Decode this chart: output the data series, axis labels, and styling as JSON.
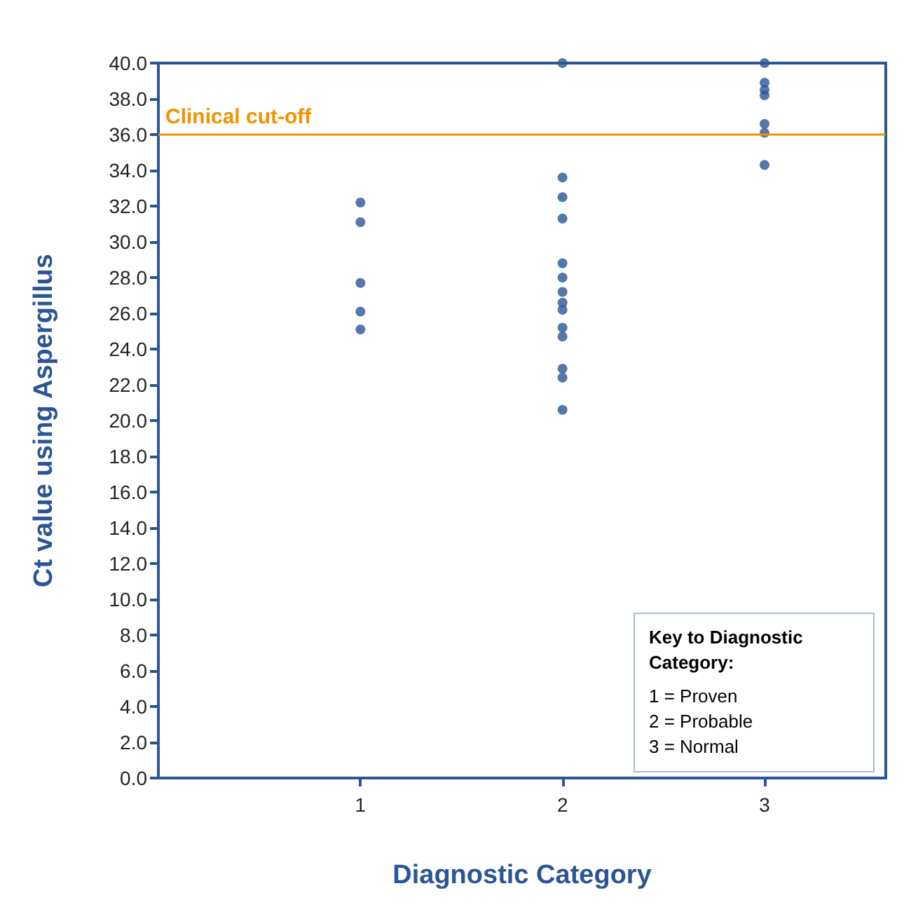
{
  "chart_data": {
    "type": "scatter",
    "xlabel": "Diagnostic Category",
    "ylabel": "Ct value using Aspergillus",
    "series": [
      {
        "color": "#2b5597",
        "x": [
          1,
          1,
          1,
          1,
          1
        ],
        "values": [
          32.2,
          31.1,
          27.7,
          26.1,
          25.1
        ]
      },
      {
        "color": "#2b5597",
        "x": [
          2,
          2,
          2,
          2,
          2,
          2,
          2,
          2,
          2,
          2,
          2,
          2,
          2,
          2
        ],
        "values": [
          40,
          33.6,
          32.5,
          31.3,
          28.8,
          28.0,
          27.2,
          26.6,
          26.2,
          25.2,
          24.7,
          22.9,
          22.4,
          20.6
        ]
      },
      {
        "color": "#2b5597",
        "x": [
          3,
          3,
          3,
          3,
          3,
          3,
          3
        ],
        "values": [
          40,
          38.9,
          38.5,
          38.2,
          36.6,
          36.1,
          34.3
        ]
      }
    ],
    "xlim": [
      0,
      3.6
    ],
    "xticks": [
      1,
      2,
      3
    ],
    "ylim": [
      0,
      40
    ],
    "yticks": [
      {
        "value": 0,
        "label": "0.0"
      },
      {
        "value": 2,
        "label": "2.0"
      },
      {
        "value": 4,
        "label": "4.0"
      },
      {
        "value": 6,
        "label": "6.0"
      },
      {
        "value": 8,
        "label": "8.0"
      },
      {
        "value": 10,
        "label": "10.0"
      },
      {
        "value": 12,
        "label": "12.0"
      },
      {
        "value": 14,
        "label": "14.0"
      },
      {
        "value": 16,
        "label": "16.0"
      },
      {
        "value": 18,
        "label": "18.0"
      },
      {
        "value": 20,
        "label": "20.0"
      },
      {
        "value": 22,
        "label": "22.0"
      },
      {
        "value": 24,
        "label": "24.0"
      },
      {
        "value": 26,
        "label": "26.0"
      },
      {
        "value": 28,
        "label": "28.0"
      },
      {
        "value": 30,
        "label": "30.0"
      },
      {
        "value": 32,
        "label": "32.0"
      },
      {
        "value": 34,
        "label": "34.0"
      },
      {
        "value": 36,
        "label": "36.0"
      },
      {
        "value": 38,
        "label": "38.0"
      },
      {
        "value": 40,
        "label": "40.0"
      }
    ],
    "ref_lines": [
      {
        "axis": "y",
        "value": 36,
        "label": "Clinical cut-off",
        "color": "#f39200"
      }
    ],
    "annotations": [
      "Key to Diagnostic Category:",
      "1 = Proven",
      "2 = Probable",
      "3 = Normal"
    ],
    "marker": "circle",
    "grid": false
  }
}
